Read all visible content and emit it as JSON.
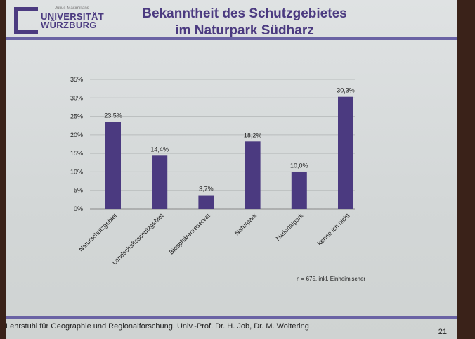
{
  "header": {
    "logo_small": "Julius-Maximilians-",
    "logo_line1": "UNIVERSITÄT",
    "logo_line2": "WÜRZBURG",
    "title_line1": "Bekanntheit des Schutzgebietes",
    "title_line2": "im Naturpark Südharz"
  },
  "footer": {
    "text": "Lehrstuhl für Geographie und Regionalforschung, Univ.-Prof. Dr. H. Job, Dr. M. Woltering",
    "page": "21"
  },
  "colors": {
    "bar": "#4b3a80",
    "accent": "#6a63a4"
  },
  "chart_data": {
    "type": "bar",
    "title": "Bekanntheit des Schutzgebietes im Naturpark Südharz",
    "categories": [
      "Naturschutzgebiet",
      "Landschaftsschutzgebiet",
      "Biosphärenreservat",
      "Naturpark",
      "Nationalpark",
      "kenne ich nicht"
    ],
    "values": [
      23.5,
      14.4,
      3.7,
      18.2,
      10.0,
      30.3
    ],
    "data_labels": [
      "23,5%",
      "14,4%",
      "3,7%",
      "18,2%",
      "10,0%",
      "30,3%"
    ],
    "yticks": [
      "0%",
      "5%",
      "10%",
      "15%",
      "20%",
      "25%",
      "30%",
      "35%"
    ],
    "ylim": [
      0,
      35
    ],
    "grid": true,
    "annotation": "n = 675, inkl. Einheimischer"
  }
}
